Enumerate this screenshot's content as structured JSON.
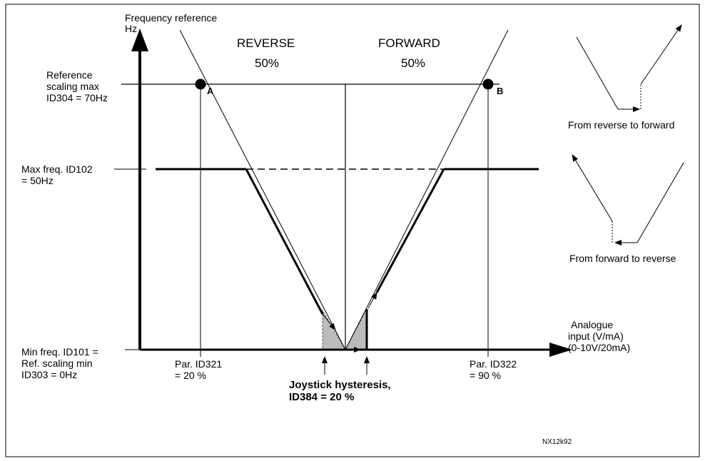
{
  "axes": {
    "y_label": [
      "Frequency reference",
      "Hz"
    ],
    "x_label": [
      "Analogue",
      "input (V/mA)",
      "(0-10V/20mA)"
    ]
  },
  "regions": {
    "reverse": {
      "label": "REVERSE",
      "percent": "50%"
    },
    "forward": {
      "label": "FORWARD",
      "percent": "50%"
    }
  },
  "levels": {
    "ref_max": [
      "Reference",
      "scaling max",
      "ID304 = 70Hz"
    ],
    "max_freq": [
      "Max freq. ID102",
      "= 50Hz"
    ],
    "min_freq": [
      "Min freq. ID101 =",
      "Ref. scaling min",
      "ID303 = 0Hz"
    ]
  },
  "points": {
    "a": "A",
    "b": "B"
  },
  "params": {
    "id321": [
      "Par. ID321",
      "= 20 %"
    ],
    "id322": [
      "Par. ID322",
      "= 90 %"
    ]
  },
  "hysteresis": [
    "Joystick hysteresis,",
    "ID384 = 20 %"
  ],
  "insets": {
    "rev_to_fwd": "From reverse to forward",
    "fwd_to_rev": "From forward to reverse"
  },
  "figure_id": "NX12k92"
}
